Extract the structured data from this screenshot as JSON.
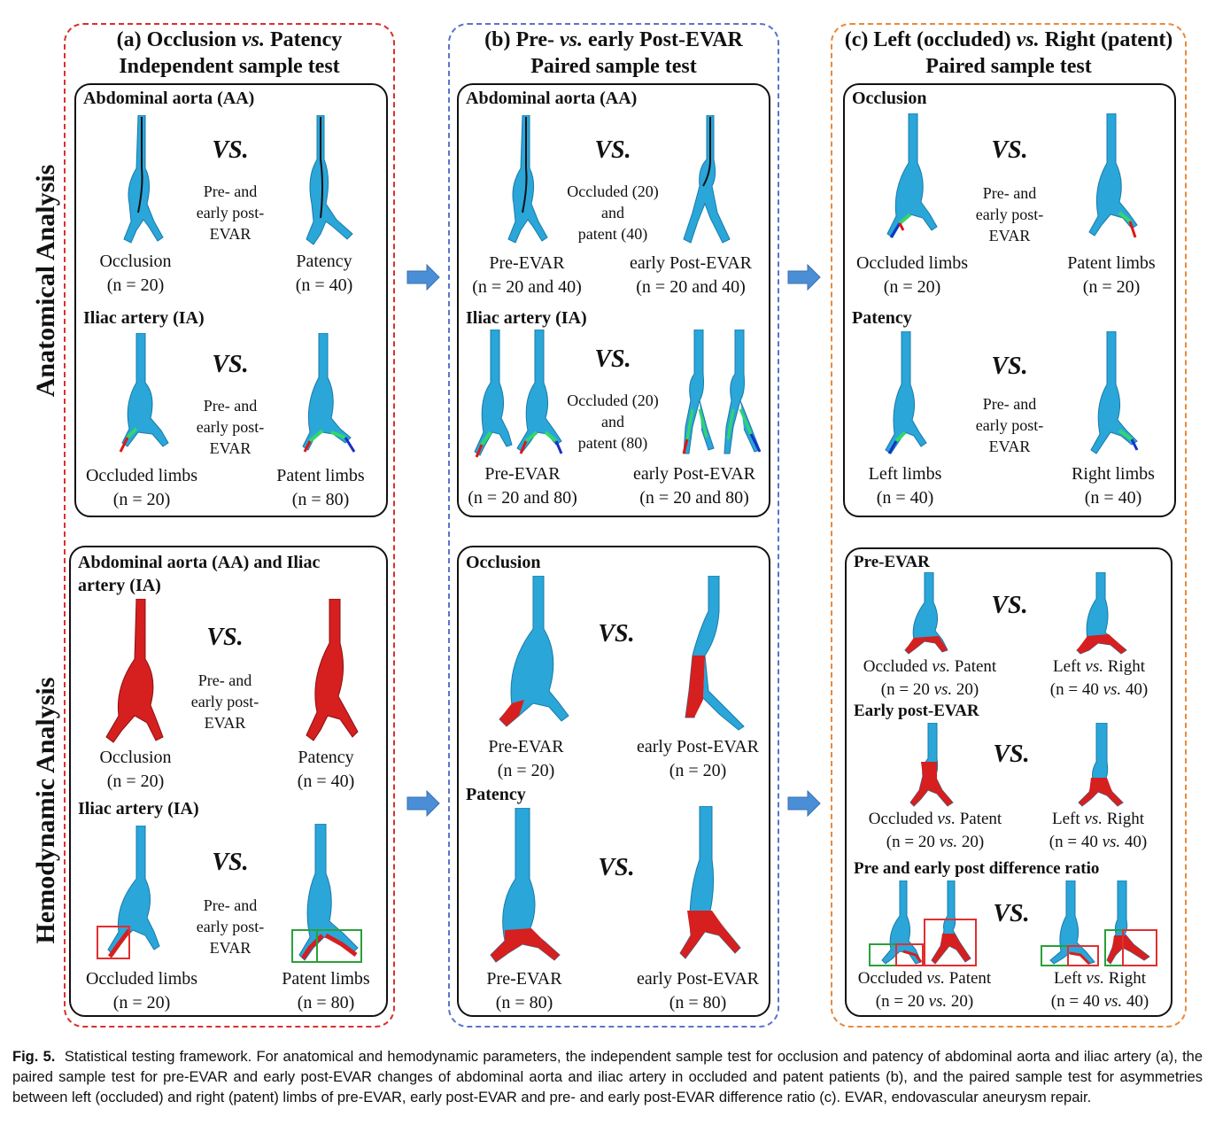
{
  "side_labels": {
    "top": "Anatomical Analysis",
    "bottom": "Hemodynamic Analysis"
  },
  "columns": {
    "a": {
      "title1": "(a) Occlusion vs. Patency",
      "title2": "Independent sample test",
      "color": "#d9302c"
    },
    "b": {
      "title1": "(b) Pre- vs. early Post-EVAR",
      "title2": "Paired sample test",
      "color": "#5b73c9"
    },
    "c": {
      "title1": "(c) Left (occluded) vs. Right (patent)",
      "title2": "Paired sample test",
      "color": "#e88a3c"
    }
  },
  "vs": "VS.",
  "vessel_colors": {
    "blue": "#2aa6d9",
    "red": "#d61f1f",
    "green": "#33d66a",
    "limb_red": "#e01515",
    "limb_blue": "#1530c8",
    "box_red": "#e03030",
    "box_green": "#2aa03a",
    "arrow": "#4a8fd6"
  },
  "a_anat": {
    "aa_title": "Abdominal aorta (AA)",
    "aa_cond": [
      "Pre- and",
      "early post-",
      "EVAR"
    ],
    "aa_left": [
      "Occlusion",
      "(n = 20)"
    ],
    "aa_right": [
      "Patency",
      "(n = 40)"
    ],
    "ia_title": "Iliac artery (IA)",
    "ia_cond": [
      "Pre- and",
      "early post-",
      "EVAR"
    ],
    "ia_left": [
      "Occluded limbs",
      "(n = 20)"
    ],
    "ia_right": [
      "Patent limbs",
      "(n = 80)"
    ]
  },
  "a_hemo": {
    "aa_title1": "Abdominal aorta (AA) and Iliac",
    "aa_title2": "artery (IA)",
    "aa_cond": [
      "Pre- and",
      "early post-",
      "EVAR"
    ],
    "aa_left": [
      "Occlusion",
      "(n = 20)"
    ],
    "aa_right": [
      "Patency",
      "(n = 40)"
    ],
    "ia_title": "Iliac artery (IA)",
    "ia_cond": [
      "Pre- and",
      "early post-",
      "EVAR"
    ],
    "ia_left": [
      "Occluded limbs",
      "(n = 20)"
    ],
    "ia_right": [
      "Patent limbs",
      "(n = 80)"
    ]
  },
  "b_anat": {
    "aa_title": "Abdominal aorta (AA)",
    "aa_cond": [
      "Occluded (20)",
      "and",
      "patent (40)"
    ],
    "aa_left": [
      "Pre-EVAR",
      "(n = 20 and 40)"
    ],
    "aa_right": [
      "early Post-EVAR",
      "(n = 20 and 40)"
    ],
    "ia_title": "Iliac artery (IA)",
    "ia_cond": [
      "Occluded (20)",
      "and",
      "patent (80)"
    ],
    "ia_left": [
      "Pre-EVAR",
      "(n = 20 and 80)"
    ],
    "ia_right": [
      "early Post-EVAR",
      "(n = 20 and 80)"
    ]
  },
  "b_hemo": {
    "occ_title": "Occlusion",
    "occ_left": [
      "Pre-EVAR",
      "(n = 20)"
    ],
    "occ_right": [
      "early Post-EVAR",
      "(n = 20)"
    ],
    "pat_title": "Patency",
    "pat_left": [
      "Pre-EVAR",
      "(n = 80)"
    ],
    "pat_right": [
      "early Post-EVAR",
      "(n = 80)"
    ]
  },
  "c_anat": {
    "occ_title": "Occlusion",
    "occ_cond": [
      "Pre- and",
      "early post-",
      "EVAR"
    ],
    "occ_left": [
      "Occluded limbs",
      "(n = 20)"
    ],
    "occ_right": [
      "Patent limbs",
      "(n = 20)"
    ],
    "pat_title": "Patency",
    "pat_cond": [
      "Pre- and",
      "early post-",
      "EVAR"
    ],
    "pat_left": [
      "Left limbs",
      "(n = 40)"
    ],
    "pat_right": [
      "Right limbs",
      "(n = 40)"
    ]
  },
  "c_hemo": {
    "pre_title": "Pre-EVAR",
    "pre_left": [
      "Occluded vs. Patent",
      "(n = 20 vs. 20)"
    ],
    "pre_right": [
      "Left vs. Right",
      "(n = 40 vs. 40)"
    ],
    "early_title": "Early post-EVAR",
    "early_left": [
      "Occluded vs. Patent",
      "(n = 20 vs. 20)"
    ],
    "early_right": [
      "Left vs. Right",
      "(n = 40 vs. 40)"
    ],
    "diff_title": "Pre and early post difference ratio",
    "diff_left": [
      "Occluded vs. Patent",
      "(n = 20 vs. 20)"
    ],
    "diff_right": [
      "Left vs. Right",
      "(n = 40 vs. 40)"
    ]
  },
  "caption": {
    "label": "Fig. 5.",
    "text": "Statistical testing framework. For anatomical and hemodynamic parameters, the independent sample test for occlusion and patency of abdominal aorta and iliac artery (a), the paired sample test for pre-EVAR and early post-EVAR changes of abdominal aorta and iliac artery in occluded and patent patients (b), and the paired sample test for asymmetries between left (occluded) and right (patent) limbs of pre-EVAR, early post-EVAR and pre- and early post-EVAR difference ratio (c). EVAR, endovascular aneurysm repair."
  }
}
